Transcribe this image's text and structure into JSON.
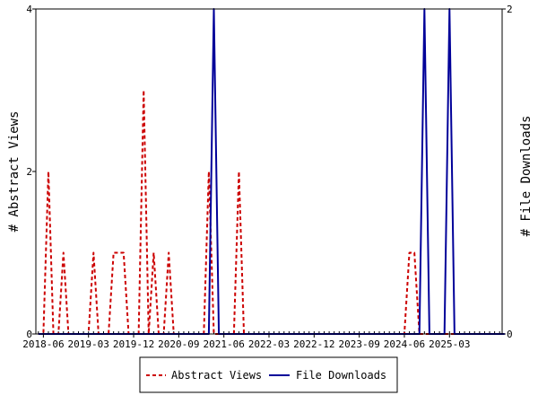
{
  "chart_data": {
    "type": "line",
    "x_start": "2018-05",
    "x_ticks": [
      "2018-06",
      "2019-03",
      "2019-12",
      "2020-09",
      "2021-06",
      "2022-03",
      "2022-12",
      "2023-09",
      "2024-06",
      "2025-03"
    ],
    "y_left": {
      "label": "# Abstract Views",
      "ticks": [
        "0",
        "2",
        "4"
      ],
      "ylim": [
        0,
        4
      ]
    },
    "y_right": {
      "label": "# File Downloads",
      "ticks": [
        "0",
        "2"
      ],
      "ylim": [
        0,
        2
      ]
    },
    "series": [
      {
        "name": "Abstract Views",
        "axis": "left",
        "color": "#cc0000",
        "style": "dashed",
        "values": [
          0,
          0,
          2,
          0,
          0,
          1,
          0,
          0,
          0,
          0,
          0,
          1,
          0,
          0,
          0,
          1,
          1,
          1,
          0,
          0,
          0,
          3,
          0,
          1,
          0,
          0,
          1,
          0,
          0,
          0,
          0,
          0,
          0,
          0,
          2,
          0,
          0,
          0,
          0,
          0,
          2,
          0,
          0,
          0,
          0,
          0,
          0,
          0,
          0,
          0,
          0,
          0,
          0,
          0,
          0,
          0,
          0,
          0,
          0,
          0,
          0,
          0,
          0,
          0,
          0,
          0,
          0,
          0,
          0,
          0,
          0,
          0,
          0,
          0,
          1,
          1,
          0,
          0,
          0,
          0,
          0,
          0,
          0,
          0,
          0,
          0,
          0,
          0,
          0,
          0,
          0,
          0,
          0
        ]
      },
      {
        "name": "File Downloads",
        "axis": "right",
        "color": "#000099",
        "style": "solid",
        "values": [
          0,
          0,
          0,
          0,
          0,
          0,
          0,
          0,
          0,
          0,
          0,
          0,
          0,
          0,
          0,
          0,
          0,
          0,
          0,
          0,
          0,
          0,
          0,
          0,
          0,
          0,
          0,
          0,
          0,
          0,
          0,
          0,
          0,
          0,
          0,
          2,
          0,
          0,
          0,
          0,
          0,
          0,
          0,
          0,
          0,
          0,
          0,
          0,
          0,
          0,
          0,
          0,
          0,
          0,
          0,
          0,
          0,
          0,
          0,
          0,
          0,
          0,
          0,
          0,
          0,
          0,
          0,
          0,
          0,
          0,
          0,
          0,
          0,
          0,
          0,
          0,
          0,
          2,
          0,
          0,
          0,
          0,
          2,
          0,
          0,
          0,
          0,
          0,
          0,
          0,
          0,
          0,
          0,
          0
        ]
      }
    ],
    "legend": {
      "placement": "bottom",
      "entries": [
        "Abstract Views",
        "File Downloads"
      ]
    }
  }
}
